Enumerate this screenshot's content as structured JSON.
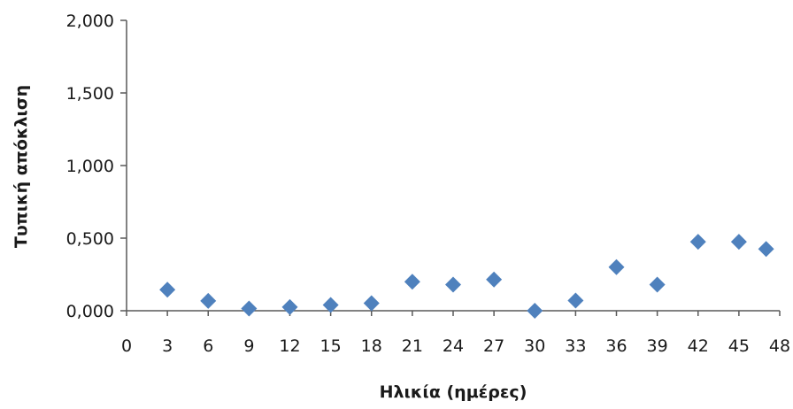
{
  "chart_data": {
    "type": "scatter",
    "title": "",
    "xlabel": "Ηλικία (ημέρες)",
    "ylabel": "Τυπική απόκλιση",
    "xlim": [
      0,
      48
    ],
    "ylim": [
      0,
      2
    ],
    "x_ticks": [
      0,
      3,
      6,
      9,
      12,
      15,
      18,
      21,
      24,
      27,
      30,
      33,
      36,
      39,
      42,
      45,
      48
    ],
    "x_tick_labels": [
      "0",
      "3",
      "6",
      "9",
      "12",
      "15",
      "18",
      "21",
      "24",
      "27",
      "30",
      "33",
      "36",
      "39",
      "42",
      "45",
      "48"
    ],
    "y_ticks": [
      0,
      0.5,
      1,
      1.5,
      2
    ],
    "y_tick_labels": [
      "0,000",
      "0,500",
      "1,000",
      "1,500",
      "2,000"
    ],
    "grid": false,
    "legend": "none",
    "marker": "diamond",
    "marker_color": "#4F81BD",
    "series": [
      {
        "x": [
          3,
          6,
          9,
          12,
          15,
          18,
          21,
          24,
          27,
          30,
          33,
          36,
          39,
          42,
          45,
          47
        ],
        "y": [
          0.145,
          0.068,
          0.015,
          0.025,
          0.04,
          0.052,
          0.2,
          0.18,
          0.215,
          0.0,
          0.07,
          0.3,
          0.18,
          0.475,
          0.475,
          0.425
        ]
      }
    ]
  }
}
